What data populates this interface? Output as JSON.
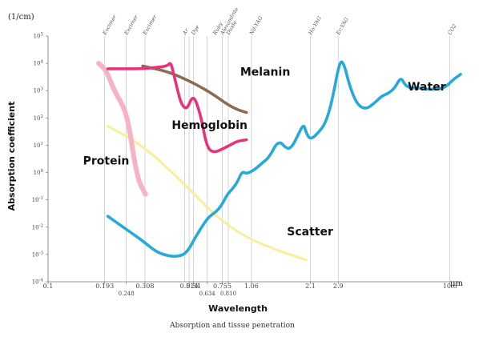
{
  "chart_data": {
    "type": "line",
    "title": "",
    "caption": "Absorption and tissue penetration",
    "xlabel": "Wavelength",
    "x_unit": "μm",
    "ylabel": "Absorption coefficient",
    "y_unit": "(1/cm)",
    "xscale": "log",
    "yscale": "log",
    "xlim": [
      0.1,
      12
    ],
    "ylim": [
      -4,
      5
    ],
    "y_ticks": [
      {
        "exp": 5,
        "label": "10 5"
      },
      {
        "exp": 4,
        "label": "10 4"
      },
      {
        "exp": 3,
        "label": "10 3"
      },
      {
        "exp": 2,
        "label": "10 2"
      },
      {
        "exp": 1,
        "label": "10 1"
      },
      {
        "exp": 0,
        "label": "10 0"
      },
      {
        "exp": -1,
        "label": "10 -1"
      },
      {
        "exp": -2,
        "label": "10 -2"
      },
      {
        "exp": -3,
        "label": "10 -3"
      },
      {
        "exp": -4,
        "label": "10 -4"
      }
    ],
    "x_ticks": [
      {
        "x": 0.1,
        "label": "0.1",
        "row": 1
      },
      {
        "x": 0.193,
        "label": "0.193",
        "row": 1
      },
      {
        "x": 0.248,
        "label": "0.248",
        "row": 2
      },
      {
        "x": 0.308,
        "label": "0.308",
        "row": 1
      },
      {
        "x": 0.514,
        "label": "0.514",
        "row": 1
      },
      {
        "x": 0.54,
        "label": "0.54",
        "row": 1
      },
      {
        "x": 0.634,
        "label": "0.634",
        "row": 2
      },
      {
        "x": 0.755,
        "label": "0.755",
        "row": 1
      },
      {
        "x": 0.81,
        "label": "0.810",
        "row": 2
      },
      {
        "x": 1.06,
        "label": "1.06",
        "row": 1
      },
      {
        "x": 2.1,
        "label": "2.1",
        "row": 1
      },
      {
        "x": 2.9,
        "label": "2.9",
        "row": 1
      },
      {
        "x": 10.6,
        "label": "10.6",
        "row": 1
      }
    ],
    "grid_lines_x": [
      0.193,
      0.248,
      0.308,
      0.488,
      0.514,
      0.54,
      0.634,
      0.755,
      0.81,
      1.06,
      2.1,
      2.9,
      10.6
    ],
    "lasers": [
      {
        "x": 0.193,
        "label": "Excimer"
      },
      {
        "x": 0.248,
        "label": "Excimer"
      },
      {
        "x": 0.308,
        "label": "Excimer"
      },
      {
        "x": 0.488,
        "label": "Ar"
      },
      {
        "x": 0.54,
        "label": "Dye"
      },
      {
        "x": 0.694,
        "label": "Ruby"
      },
      {
        "x": 0.755,
        "label": "Alexandrite"
      },
      {
        "x": 0.81,
        "label": "Diode"
      },
      {
        "x": 1.06,
        "label": "Nd:YAG"
      },
      {
        "x": 2.1,
        "label": "Ho:YAG"
      },
      {
        "x": 2.9,
        "label": "Er:YAG"
      },
      {
        "x": 10.6,
        "label": "CO2"
      }
    ],
    "series": [
      {
        "name": "Water",
        "color": "#27a9db",
        "points": [
          [
            0.2,
            -1.6
          ],
          [
            0.25,
            -2.1
          ],
          [
            0.3,
            -2.5
          ],
          [
            0.35,
            -2.9
          ],
          [
            0.4,
            -3.05
          ],
          [
            0.45,
            -3.08
          ],
          [
            0.5,
            -2.95
          ],
          [
            0.55,
            -2.4
          ],
          [
            0.6,
            -1.95
          ],
          [
            0.65,
            -1.6
          ],
          [
            0.7,
            -1.45
          ],
          [
            0.75,
            -1.2
          ],
          [
            0.8,
            -0.8
          ],
          [
            0.85,
            -0.6
          ],
          [
            0.9,
            -0.35
          ],
          [
            0.95,
            0.05
          ],
          [
            1.0,
            -0.05
          ],
          [
            1.1,
            0.1
          ],
          [
            1.2,
            0.35
          ],
          [
            1.3,
            0.55
          ],
          [
            1.45,
            1.2
          ],
          [
            1.6,
            0.85
          ],
          [
            1.7,
            0.95
          ],
          [
            1.8,
            1.3
          ],
          [
            1.94,
            1.8
          ],
          [
            2.0,
            1.45
          ],
          [
            2.1,
            1.2
          ],
          [
            2.3,
            1.45
          ],
          [
            2.5,
            1.8
          ],
          [
            2.7,
            2.6
          ],
          [
            2.95,
            4.1
          ],
          [
            3.1,
            4.0
          ],
          [
            3.3,
            3.2
          ],
          [
            3.6,
            2.5
          ],
          [
            4.0,
            2.3
          ],
          [
            4.5,
            2.6
          ],
          [
            4.8,
            2.8
          ],
          [
            5.2,
            2.9
          ],
          [
            5.6,
            3.1
          ],
          [
            6.0,
            3.5
          ],
          [
            6.3,
            3.2
          ],
          [
            6.7,
            3.1
          ],
          [
            7.0,
            3.1
          ],
          [
            7.5,
            3.1
          ],
          [
            8.0,
            3.05
          ],
          [
            9.0,
            3.05
          ],
          [
            10.0,
            3.1
          ],
          [
            11.0,
            3.4
          ],
          [
            12.0,
            3.6
          ]
        ]
      },
      {
        "name": "Melanin",
        "color": "#8b6c52",
        "points": [
          [
            0.3,
            3.9
          ],
          [
            0.4,
            3.7
          ],
          [
            0.5,
            3.4
          ],
          [
            0.6,
            3.1
          ],
          [
            0.7,
            2.8
          ],
          [
            0.8,
            2.5
          ],
          [
            0.9,
            2.3
          ],
          [
            1.0,
            2.2
          ]
        ]
      },
      {
        "name": "Hemoglobin",
        "color": "#e8337a",
        "points": [
          [
            0.2,
            3.8
          ],
          [
            0.25,
            3.8
          ],
          [
            0.3,
            3.8
          ],
          [
            0.35,
            3.85
          ],
          [
            0.4,
            3.9
          ],
          [
            0.415,
            4.05
          ],
          [
            0.43,
            3.6
          ],
          [
            0.45,
            3.0
          ],
          [
            0.47,
            2.5
          ],
          [
            0.5,
            2.3
          ],
          [
            0.53,
            2.75
          ],
          [
            0.55,
            2.7
          ],
          [
            0.57,
            2.4
          ],
          [
            0.6,
            1.8
          ],
          [
            0.62,
            1.2
          ],
          [
            0.65,
            0.8
          ],
          [
            0.7,
            0.75
          ],
          [
            0.75,
            0.85
          ],
          [
            0.8,
            0.95
          ],
          [
            0.85,
            1.05
          ],
          [
            0.9,
            1.15
          ],
          [
            1.0,
            1.2
          ]
        ]
      },
      {
        "name": "Protein",
        "color": "#f7b2c6",
        "points": [
          [
            0.18,
            4.0
          ],
          [
            0.19,
            3.85
          ],
          [
            0.2,
            3.6
          ],
          [
            0.21,
            3.2
          ],
          [
            0.22,
            2.9
          ],
          [
            0.24,
            2.4
          ],
          [
            0.25,
            2.0
          ],
          [
            0.26,
            1.4
          ],
          [
            0.27,
            0.6
          ],
          [
            0.28,
            0.0
          ],
          [
            0.29,
            -0.4
          ],
          [
            0.3,
            -0.6
          ],
          [
            0.31,
            -0.8
          ]
        ]
      },
      {
        "name": "Scatter",
        "color": "#f7ef9a",
        "points": [
          [
            0.2,
            1.7
          ],
          [
            0.3,
            1.0
          ],
          [
            0.5,
            -0.5
          ],
          [
            0.7,
            -1.6
          ],
          [
            1.0,
            -2.4
          ],
          [
            1.5,
            -2.9
          ],
          [
            2.0,
            -3.2
          ]
        ]
      }
    ],
    "series_labels": [
      {
        "name": "Water",
        "x": 6.5,
        "y": 3.0
      },
      {
        "name": "Melanin",
        "x": 0.93,
        "y": 3.55
      },
      {
        "name": "Hemoglobin",
        "x": 0.42,
        "y": 1.6
      },
      {
        "name": "Protein",
        "x": 0.15,
        "y": 0.3
      },
      {
        "name": "Scatter",
        "x": 1.6,
        "y": -2.3
      }
    ]
  }
}
